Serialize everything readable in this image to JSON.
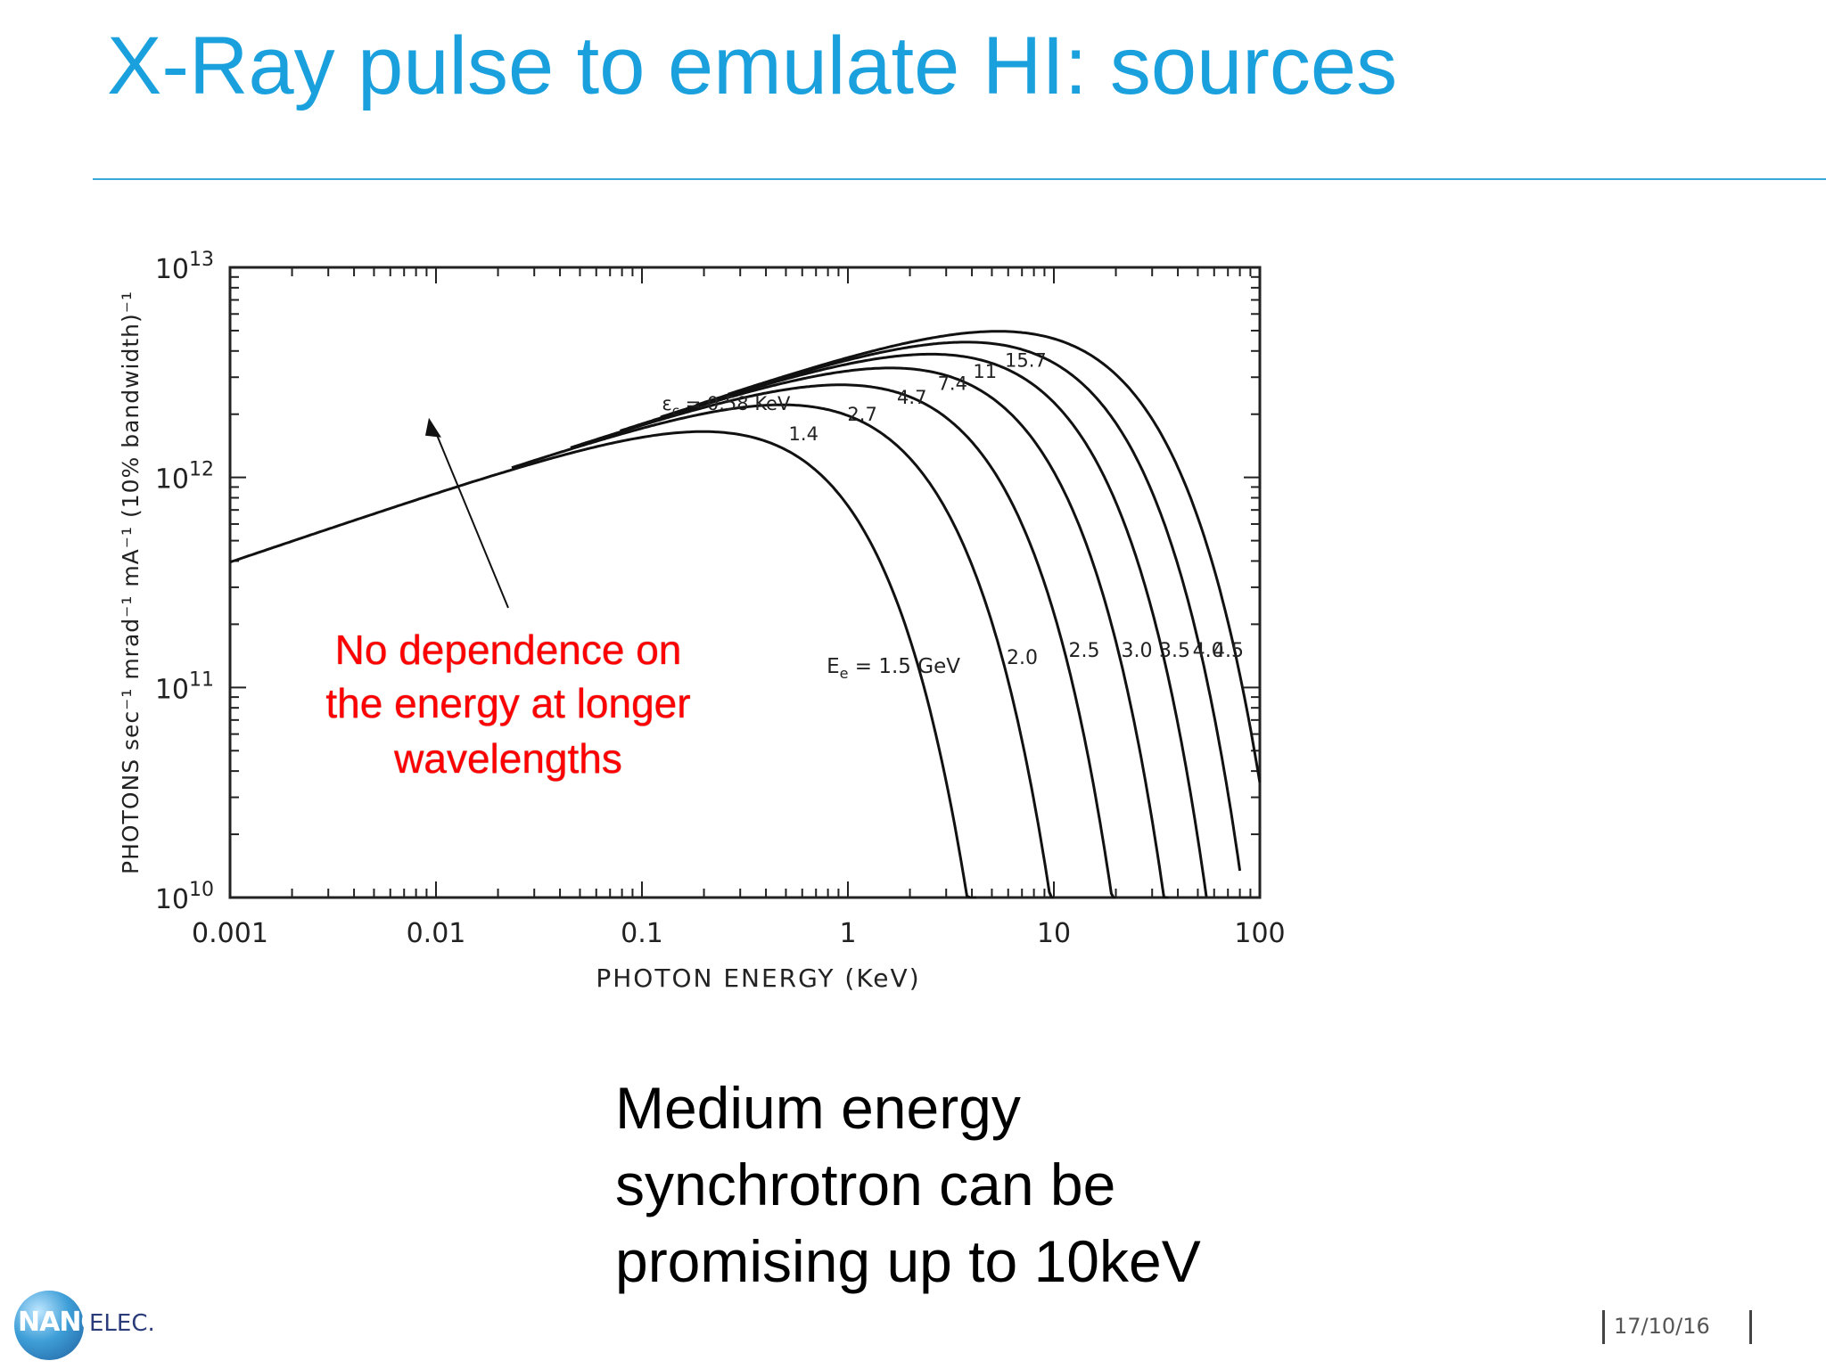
{
  "slide": {
    "title": "X-Ray pulse to emulate HI: sources",
    "bottom_text_lines": [
      "Medium energy",
      "synchrotron can be",
      "promising up to 10keV"
    ],
    "logo": {
      "left": "NANO",
      "right": "ELEC."
    },
    "date": "17/10/16",
    "colors": {
      "title": "#1aa1dd",
      "rule": "#3aa8d8",
      "annotation": "#ff0000"
    }
  },
  "chart_data": {
    "type": "line",
    "xlabel": "PHOTON ENERGY (KeV)",
    "ylabel": "PHOTONS sec⁻¹ mrad⁻¹ mA⁻¹ (10% bandwidth)⁻¹",
    "xscale": "log",
    "yscale": "log",
    "xlim": [
      0.001,
      100
    ],
    "ylim": [
      10000000000.0,
      10000000000000.0
    ],
    "xticks": [
      {
        "value": 0.001,
        "label": "0.001"
      },
      {
        "value": 0.01,
        "label": "0.01"
      },
      {
        "value": 0.1,
        "label": "0.1"
      },
      {
        "value": 1,
        "label": "1"
      },
      {
        "value": 10,
        "label": "10"
      },
      {
        "value": 100,
        "label": "100"
      }
    ],
    "yticks": [
      {
        "value": 10000000000000.0,
        "mantissa": "10",
        "exp": "13"
      },
      {
        "value": 1000000000000.0,
        "mantissa": "10",
        "exp": "12"
      },
      {
        "value": 100000000000.0,
        "mantissa": "10",
        "exp": "11"
      },
      {
        "value": 10000000000.0,
        "mantissa": "10",
        "exp": "10"
      }
    ],
    "critical_energy_prefix": "ε",
    "critical_energy_sub": "c",
    "electron_energy_prefix": "E",
    "electron_energy_sub": "e",
    "series": [
      {
        "ee": "= 1.5 GeV",
        "ec": "= 0.58 KeV",
        "critical_kev": 0.58,
        "cutoff_kev": 4.2
      },
      {
        "ee": "2.0",
        "ec": "1.4",
        "critical_kev": 1.4,
        "cutoff_kev": 10
      },
      {
        "ee": "2.5",
        "ec": "2.7",
        "critical_kev": 2.7,
        "cutoff_kev": 20
      },
      {
        "ee": "3.0",
        "ec": "4.7",
        "critical_kev": 4.7,
        "cutoff_kev": 36
      },
      {
        "ee": "3.5",
        "ec": "7.4",
        "critical_kev": 7.4,
        "cutoff_kev": 55
      },
      {
        "ee": "4.0",
        "ec": "11",
        "critical_kev": 11,
        "cutoff_kev": 80
      },
      {
        "ee": "4.5",
        "ec": "15.7",
        "critical_kev": 15.7,
        "cutoff_kev": 100
      }
    ],
    "annotation": {
      "lines": [
        "No dependence on",
        "the energy at longer",
        "wavelengths"
      ],
      "arrow_target": {
        "x": 0.01,
        "y": 2000000000000.0
      }
    }
  }
}
